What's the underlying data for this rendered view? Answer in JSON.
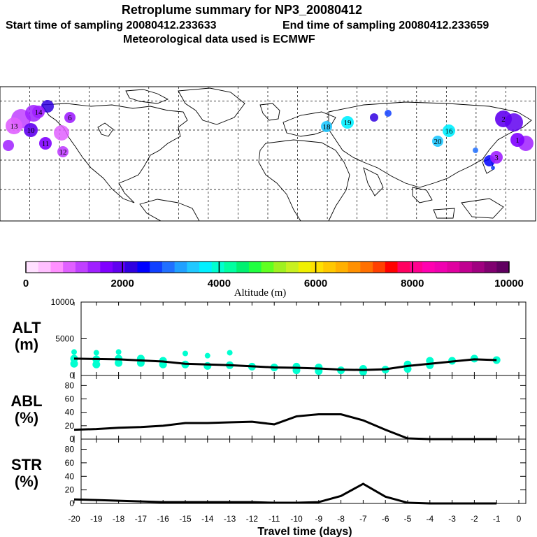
{
  "header": {
    "title": "Retroplume summary for NP3_20080412",
    "start_label": "Start time of sampling 20080412.233633",
    "end_label": "End time of sampling 20080412.233659",
    "met_label": "Meteorological data used is ECMWF"
  },
  "colorbar": {
    "label": "Altitude (m)",
    "min": 0,
    "max": 10000,
    "ticks": [
      "0",
      "2000",
      "4000",
      "6000",
      "8000",
      "10000"
    ],
    "colors": [
      "#ffe0ff",
      "#ffc0ff",
      "#ff90ff",
      "#e060ff",
      "#c040ff",
      "#a020ff",
      "#8000ff",
      "#6000f0",
      "#3000e0",
      "#0000ff",
      "#1040ff",
      "#2070ff",
      "#20a0ff",
      "#20c8ff",
      "#00f0ff",
      "#00ffd0",
      "#00ffa0",
      "#00f070",
      "#20ff40",
      "#60ff20",
      "#a0f020",
      "#c8f020",
      "#f0f000",
      "#ffe000",
      "#ffc800",
      "#ffb000",
      "#ff9000",
      "#ff7000",
      "#ff4000",
      "#ff0000",
      "#ff0060",
      "#ff0090",
      "#ff00b0",
      "#f000b0",
      "#e000a0",
      "#c00090",
      "#a00080",
      "#800070",
      "#600060"
    ]
  },
  "map": {
    "markers": [
      {
        "label": "6",
        "alt": 1500
      },
      {
        "label": "10",
        "alt": 1800
      },
      {
        "label": "11",
        "alt": 1600
      },
      {
        "label": "12",
        "alt": 1200
      },
      {
        "label": "13",
        "alt": 1000
      },
      {
        "label": "14",
        "alt": 1400
      },
      {
        "label": "16",
        "alt": 3800
      },
      {
        "label": "18",
        "alt": 3400
      },
      {
        "label": "19",
        "alt": 3600
      },
      {
        "label": "20",
        "alt": 3500
      },
      {
        "label": "1",
        "alt": 1600
      },
      {
        "label": "2",
        "alt": 1900
      },
      {
        "label": "3",
        "alt": 1300
      }
    ]
  },
  "axes": {
    "xlabel": "Travel time (days)",
    "xticks": [
      "-20",
      "-19",
      "-18",
      "-17",
      "-16",
      "-15",
      "-14",
      "-13",
      "-12",
      "-11",
      "-10",
      "-9",
      "-8",
      "-7",
      "-6",
      "-5",
      "-4",
      "-3",
      "-2",
      "-1",
      "0"
    ]
  },
  "chart_data": [
    {
      "type": "line",
      "panel": "ALT",
      "ylabel_top": "ALT",
      "ylabel_unit": "(m)",
      "ylim": [
        0,
        10000
      ],
      "yticks": [
        "10000",
        "5000",
        "0"
      ],
      "x": [
        -20,
        -19,
        -18,
        -17,
        -16,
        -15,
        -14,
        -13,
        -12,
        -11,
        -10,
        -9,
        -8,
        -7,
        -6,
        -5,
        -4,
        -3,
        -2,
        -1
      ],
      "values": [
        2300,
        2250,
        2200,
        2050,
        1900,
        1600,
        1500,
        1400,
        1250,
        1100,
        1050,
        950,
        800,
        750,
        850,
        1300,
        1600,
        1900,
        2200,
        2100
      ],
      "scatter": [
        {
          "x": -20,
          "y": 3200
        },
        {
          "x": -20,
          "y": 2300
        },
        {
          "x": -20,
          "y": 1600
        },
        {
          "x": -19,
          "y": 3100
        },
        {
          "x": -19,
          "y": 2200
        },
        {
          "x": -19,
          "y": 1500
        },
        {
          "x": -18,
          "y": 3200
        },
        {
          "x": -18,
          "y": 2300
        },
        {
          "x": -18,
          "y": 1700
        },
        {
          "x": -17,
          "y": 2300
        },
        {
          "x": -17,
          "y": 1700
        },
        {
          "x": -16,
          "y": 2000
        },
        {
          "x": -16,
          "y": 1500
        },
        {
          "x": -15,
          "y": 3000
        },
        {
          "x": -15,
          "y": 1500
        },
        {
          "x": -14,
          "y": 2700
        },
        {
          "x": -14,
          "y": 1300
        },
        {
          "x": -13,
          "y": 3100
        },
        {
          "x": -13,
          "y": 1400
        },
        {
          "x": -12,
          "y": 1200
        },
        {
          "x": -11,
          "y": 1100
        },
        {
          "x": -10,
          "y": 1200
        },
        {
          "x": -10,
          "y": 700
        },
        {
          "x": -9,
          "y": 1100
        },
        {
          "x": -9,
          "y": 600
        },
        {
          "x": -8,
          "y": 700
        },
        {
          "x": -7,
          "y": 900
        },
        {
          "x": -7,
          "y": 500
        },
        {
          "x": -6,
          "y": 800
        },
        {
          "x": -5,
          "y": 1500
        },
        {
          "x": -5,
          "y": 900
        },
        {
          "x": -4,
          "y": 2000
        },
        {
          "x": -4,
          "y": 1400
        },
        {
          "x": -3,
          "y": 2000
        },
        {
          "x": -2,
          "y": 2300
        },
        {
          "x": -1,
          "y": 2100
        }
      ]
    },
    {
      "type": "line",
      "panel": "ABL",
      "ylabel_top": "ABL",
      "ylabel_unit": "(%)",
      "ylim": [
        0,
        90
      ],
      "yticks": [
        "80",
        "60",
        "40",
        "20",
        "0"
      ],
      "x": [
        -20,
        -19,
        -18,
        -17,
        -16,
        -15,
        -14,
        -13,
        -12,
        -11,
        -10,
        -9,
        -8,
        -7,
        -6,
        -5,
        -4,
        -3,
        -2,
        -1
      ],
      "values": [
        14,
        15,
        17,
        18,
        20,
        24,
        24,
        25,
        26,
        22,
        34,
        37,
        37,
        28,
        14,
        1,
        0,
        0,
        0,
        0
      ]
    },
    {
      "type": "line",
      "panel": "STR",
      "ylabel_top": "STR",
      "ylabel_unit": "(%)",
      "ylim": [
        0,
        90
      ],
      "yticks": [
        "80",
        "60",
        "40",
        "20",
        "0"
      ],
      "x": [
        -20,
        -19,
        -18,
        -17,
        -16,
        -15,
        -14,
        -13,
        -12,
        -11,
        -10,
        -9,
        -8,
        -7,
        -6,
        -5,
        -4,
        -3,
        -2,
        -1
      ],
      "values": [
        6,
        5,
        4,
        3,
        2,
        2,
        2,
        2,
        2,
        1,
        1,
        2,
        11,
        29,
        10,
        1,
        0,
        0,
        0,
        0
      ]
    }
  ]
}
